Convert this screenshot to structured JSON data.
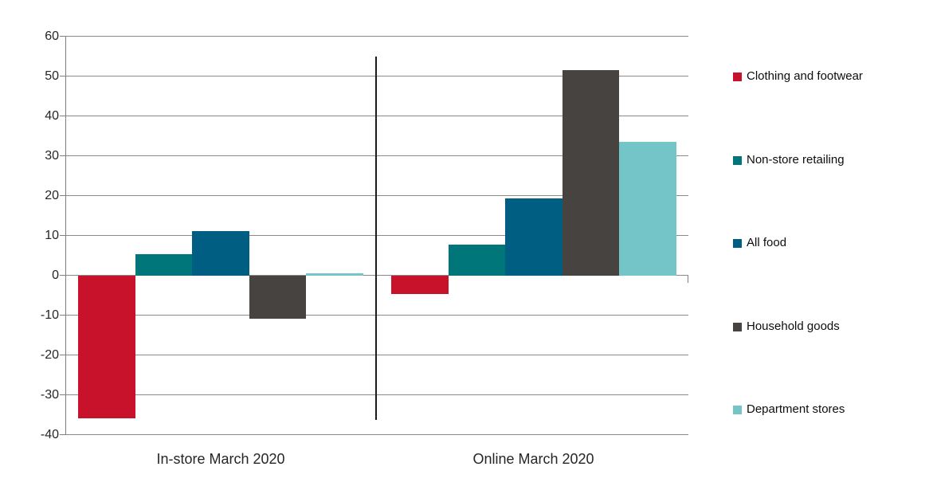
{
  "chart_data": {
    "type": "bar",
    "title": "",
    "categories": [
      "In-store March 2020",
      "Online March 2020"
    ],
    "series": [
      {
        "name": "Clothing and footwear",
        "color": "#c8122b",
        "values": [
          -35.9,
          -4.7
        ]
      },
      {
        "name": "Non-store retailing",
        "color": "#00767b",
        "values": [
          5.4,
          7.8
        ]
      },
      {
        "name": "All food",
        "color": "#005e82",
        "values": [
          11.2,
          19.4
        ]
      },
      {
        "name": "Household goods",
        "color": "#474340",
        "values": [
          -10.9,
          51.6
        ]
      },
      {
        "name": "Department stores",
        "color": "#74c5c7",
        "values": [
          0.5,
          33.5
        ]
      }
    ],
    "y_axis": {
      "min": -40,
      "max": 60,
      "step": 10,
      "ticks": [
        60,
        50,
        40,
        30,
        20,
        10,
        0,
        -10,
        -20,
        -30,
        -40
      ]
    },
    "grid": true,
    "legend_position": "right",
    "colors": {
      "gridline": "#8a8a8a",
      "axis": "#7f7f7f",
      "divider": "#1a1a1a",
      "text": "#262626"
    }
  }
}
